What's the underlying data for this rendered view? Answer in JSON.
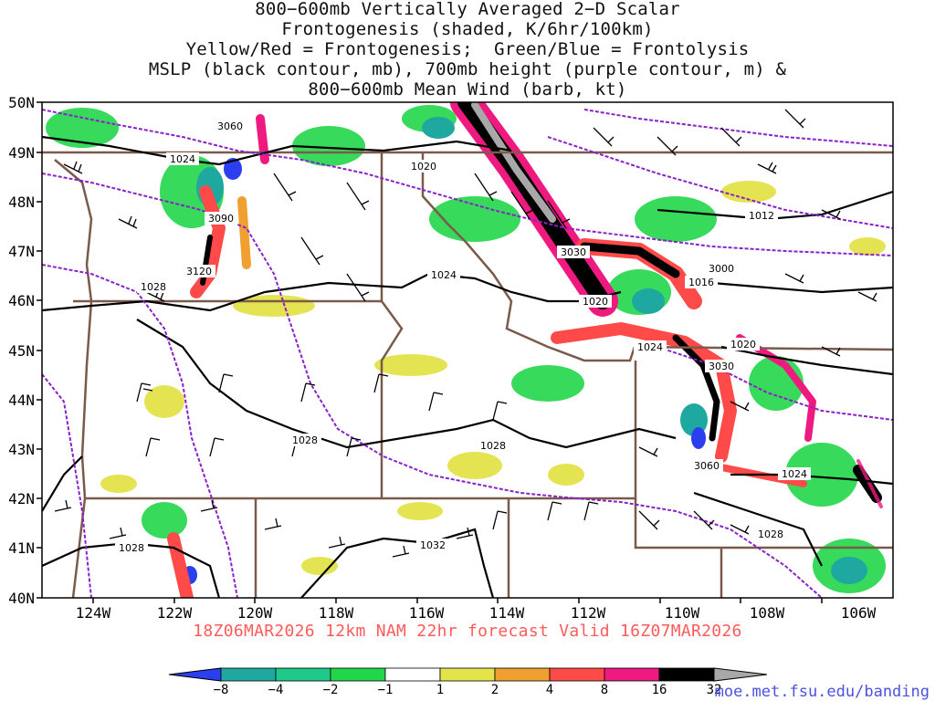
{
  "title_lines": [
    "800−600mb Vertically Averaged 2−D Scalar",
    "Frontogenesis (shaded, K/6hr/100km)",
    "Yellow/Red = Frontogenesis;  Green/Blue = Frontolysis",
    "MSLP (black contour, mb), 700mb height (purple contour, m) &",
    "800−600mb Mean Wind (barb, kt)"
  ],
  "lat_labels": [
    "50N",
    "49N",
    "48N",
    "47N",
    "46N",
    "45N",
    "44N",
    "43N",
    "42N",
    "41N",
    "40N"
  ],
  "lon_labels": [
    "124W",
    "122W",
    "120W",
    "118W",
    "116W",
    "114W",
    "112W",
    "110W",
    "108W",
    "106W"
  ],
  "forecast_text": "18Z06MAR2026 12km NAM 22hr forecast Valid 16Z07MAR2026",
  "source_url": "moe.met.fsu.edu/banding",
  "colorbar": {
    "labels": [
      "−8",
      "−4",
      "−2",
      "−1",
      "1",
      "2",
      "4",
      "8",
      "16",
      "32"
    ],
    "colors": [
      "#2b3ff0",
      "#1fa8a0",
      "#1ec98a",
      "#22d64a",
      "#ffffff",
      "#e3e34a",
      "#f0a030",
      "#ff4a4a",
      "#ee1a80",
      "#000000",
      "#a8a8a8"
    ]
  },
  "contour_labels": {
    "mslp": [
      "1024",
      "1020",
      "1024",
      "1028",
      "1016",
      "1012",
      "1020",
      "1024",
      "1020",
      "1028",
      "1028",
      "1028",
      "1032",
      "1024",
      "1028"
    ],
    "height": [
      "3060",
      "3090",
      "3120",
      "3030",
      "3000",
      "3030",
      "3060"
    ]
  },
  "colors": {
    "state_border": "#7a5a4a",
    "mslp": "#000000",
    "height": "#8a22c8",
    "forecast_text": "#ff5a5a",
    "url": "#4a52e0"
  }
}
